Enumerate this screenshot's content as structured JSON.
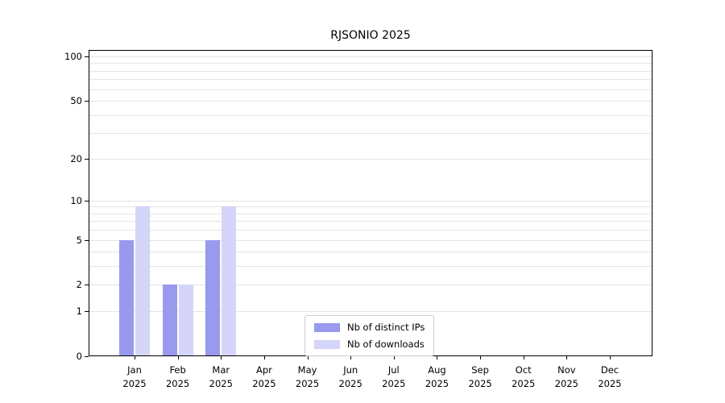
{
  "chart_data": {
    "type": "bar",
    "title": "RJSONIO 2025",
    "x_months": [
      "Jan",
      "Feb",
      "Mar",
      "Apr",
      "May",
      "Jun",
      "Jul",
      "Aug",
      "Sep",
      "Oct",
      "Nov",
      "Dec"
    ],
    "x_year": "2025",
    "categories": [
      "Jan 2025",
      "Feb 2025",
      "Mar 2025",
      "Apr 2025",
      "May 2025",
      "Jun 2025",
      "Jul 2025",
      "Aug 2025",
      "Sep 2025",
      "Oct 2025",
      "Nov 2025",
      "Dec 2025"
    ],
    "series": [
      {
        "name": "Nb of distinct IPs",
        "color": "#9999ee",
        "values": [
          5,
          2,
          5,
          0,
          0,
          0,
          0,
          0,
          0,
          0,
          0,
          0
        ]
      },
      {
        "name": "Nb of downloads",
        "color": "#d5d5f9",
        "values": [
          9,
          2,
          9,
          0,
          0,
          0,
          0,
          0,
          0,
          0,
          0,
          0
        ]
      }
    ],
    "y_ticks": [
      0,
      1,
      2,
      5,
      10,
      20,
      50,
      100
    ],
    "ylim": [
      0,
      100
    ],
    "y_scale": "log10(1+v)",
    "grid": "horizontal minor gridlines",
    "gridline_color": "#e4e4e4",
    "legend_position": "bottom-center inside plot",
    "axis_color": "#000000",
    "background_color": "#ffffff"
  }
}
